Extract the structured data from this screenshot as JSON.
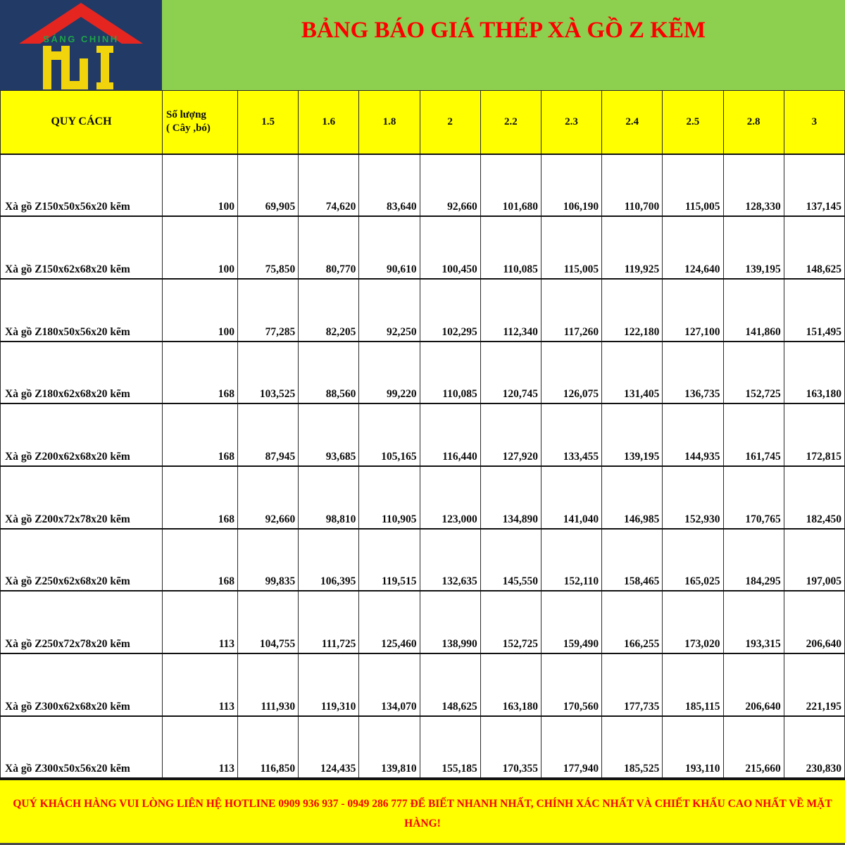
{
  "logo": {
    "brand": "SÁNG CHINH",
    "letters": "HJI"
  },
  "banner": {
    "title": "BẢNG BÁO GIÁ THÉP XÀ GỒ Z KẼM"
  },
  "table": {
    "spec_header": "QUY CÁCH",
    "qty_header_line1": "Số lượng",
    "qty_header_line2": "( Cây ,bó)",
    "length_headers": [
      "1.5",
      "1.6",
      "1.8",
      "2",
      "2.2",
      "2.3",
      "2.4",
      "2.5",
      "2.8",
      "3"
    ],
    "rows": [
      {
        "spec": "Xà gồ Z150x50x56x20 kẽm",
        "qty": "100",
        "prices": [
          "69,905",
          "74,620",
          "83,640",
          "92,660",
          "101,680",
          "106,190",
          "110,700",
          "115,005",
          "128,330",
          "137,145"
        ]
      },
      {
        "spec": "Xà gồ Z150x62x68x20 kẽm",
        "qty": "100",
        "prices": [
          "75,850",
          "80,770",
          "90,610",
          "100,450",
          "110,085",
          "115,005",
          "119,925",
          "124,640",
          "139,195",
          "148,625"
        ]
      },
      {
        "spec": "Xà gồ Z180x50x56x20 kẽm",
        "qty": "100",
        "prices": [
          "77,285",
          "82,205",
          "92,250",
          "102,295",
          "112,340",
          "117,260",
          "122,180",
          "127,100",
          "141,860",
          "151,495"
        ]
      },
      {
        "spec": "Xà gồ Z180x62x68x20 kẽm",
        "qty": "168",
        "prices": [
          "103,525",
          "88,560",
          "99,220",
          "110,085",
          "120,745",
          "126,075",
          "131,405",
          "136,735",
          "152,725",
          "163,180"
        ]
      },
      {
        "spec": "Xà gồ Z200x62x68x20 kẽm",
        "qty": "168",
        "prices": [
          "87,945",
          "93,685",
          "105,165",
          "116,440",
          "127,920",
          "133,455",
          "139,195",
          "144,935",
          "161,745",
          "172,815"
        ]
      },
      {
        "spec": "Xà gồ Z200x72x78x20 kẽm",
        "qty": "168",
        "prices": [
          "92,660",
          "98,810",
          "110,905",
          "123,000",
          "134,890",
          "141,040",
          "146,985",
          "152,930",
          "170,765",
          "182,450"
        ]
      },
      {
        "spec": "Xà gồ Z250x62x68x20 kẽm",
        "qty": "168",
        "prices": [
          "99,835",
          "106,395",
          "119,515",
          "132,635",
          "145,550",
          "152,110",
          "158,465",
          "165,025",
          "184,295",
          "197,005"
        ]
      },
      {
        "spec": "Xà gồ Z250x72x78x20 kẽm",
        "qty": "113",
        "prices": [
          "104,755",
          "111,725",
          "125,460",
          "138,990",
          "152,725",
          "159,490",
          "166,255",
          "173,020",
          "193,315",
          "206,640"
        ]
      },
      {
        "spec": "Xà gồ Z300x62x68x20 kẽm",
        "qty": "113",
        "prices": [
          "111,930",
          "119,310",
          "134,070",
          "148,625",
          "163,180",
          "170,560",
          "177,735",
          "185,115",
          "206,640",
          "221,195"
        ]
      },
      {
        "spec": "Xà gồ Z300x50x56x20 kẽm",
        "qty": "113",
        "prices": [
          "116,850",
          "124,435",
          "139,810",
          "155,185",
          "170,355",
          "177,940",
          "185,525",
          "193,110",
          "215,660",
          "230,830"
        ]
      }
    ]
  },
  "footer": {
    "line1": "QUÝ KHÁCH HÀNG VUI LÒNG LIÊN HỆ HOTLINE 0909 936 937 - 0949 286 777 ĐỂ BIẾT NHANH NHẤT, CHÍNH XÁC NHẤT VÀ CHIẾT KHẤU CAO NHẤT VỀ MẶT",
    "line2": "HÀNG!"
  },
  "colors": {
    "navy": "#213a66",
    "green": "#8dcf4f",
    "yellow": "#ffff00",
    "title_red": "#fc0000",
    "footer_red": "#f50000",
    "roof_red": "#e52620",
    "brand_green": "#1fa44a",
    "logo_yellow": "#f2d40c"
  }
}
